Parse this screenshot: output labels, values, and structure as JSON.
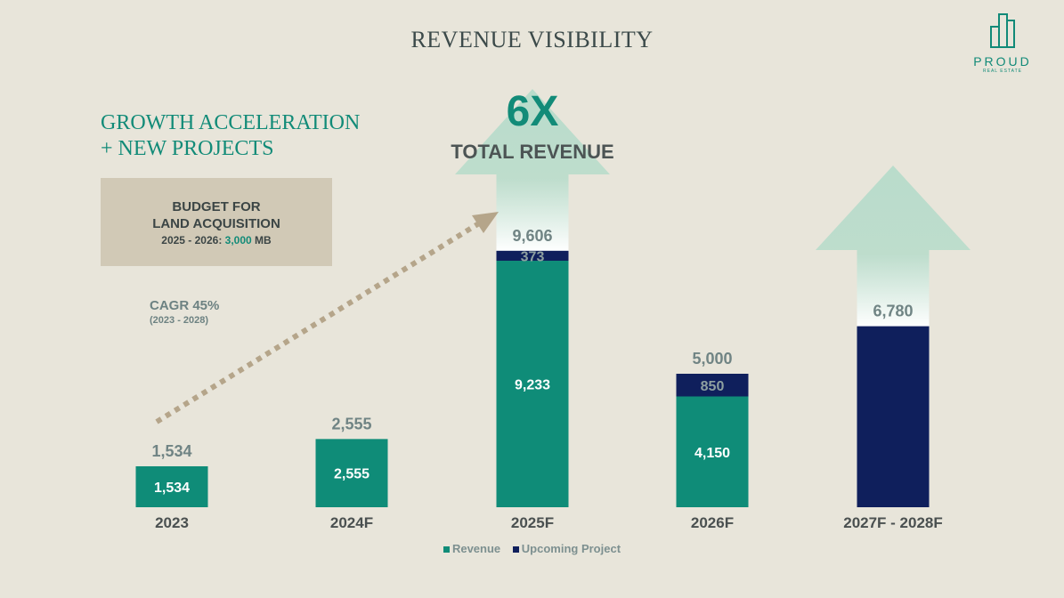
{
  "header": {
    "title": "REVENUE VISIBILITY"
  },
  "logo": {
    "word": "PROUD",
    "sub": "REAL ESTATE"
  },
  "left_panel": {
    "growth_line1": "GROWTH ACCELERATION",
    "growth_line2": "+ NEW PROJECTS",
    "budget_line1": "BUDGET FOR",
    "budget_line2": "LAND ACQUISITION",
    "budget_period": "2025 - 2026:",
    "budget_value": "3,000",
    "budget_unit": "MB",
    "cagr": "CAGR 45%",
    "cagr_period": "(2023 - 2028)"
  },
  "highlight": {
    "multiplier": "6X",
    "label": "TOTAL REVENUE"
  },
  "colors": {
    "revenue": "#0f8c78",
    "upcoming": "#0f1f5c",
    "arrow": "#b9dccb",
    "dots": "#b5a58a"
  },
  "chart_data": {
    "type": "bar",
    "stacked": true,
    "categories": [
      "2023",
      "2024F",
      "2025F",
      "2026F",
      "2027F - 2028F"
    ],
    "series": [
      {
        "name": "Revenue",
        "values": [
          1534,
          2555,
          9233,
          4150,
          0
        ]
      },
      {
        "name": "Upcoming Project",
        "values": [
          0,
          0,
          373,
          850,
          6780
        ]
      }
    ],
    "totals": [
      1534,
      2555,
      9606,
      5000,
      6780
    ],
    "total_labels": [
      "1,534",
      "2,555",
      "9,606",
      "5,000",
      "6,780"
    ],
    "segment_labels": {
      "Revenue": [
        "1,534",
        "2,555",
        "9,233",
        "4,150",
        ""
      ],
      "Upcoming Project": [
        "",
        "",
        "373",
        "850",
        ""
      ]
    },
    "ylim": [
      0,
      11000
    ],
    "legend": [
      "Revenue",
      "Upcoming Project"
    ],
    "legend_position": "bottom"
  }
}
